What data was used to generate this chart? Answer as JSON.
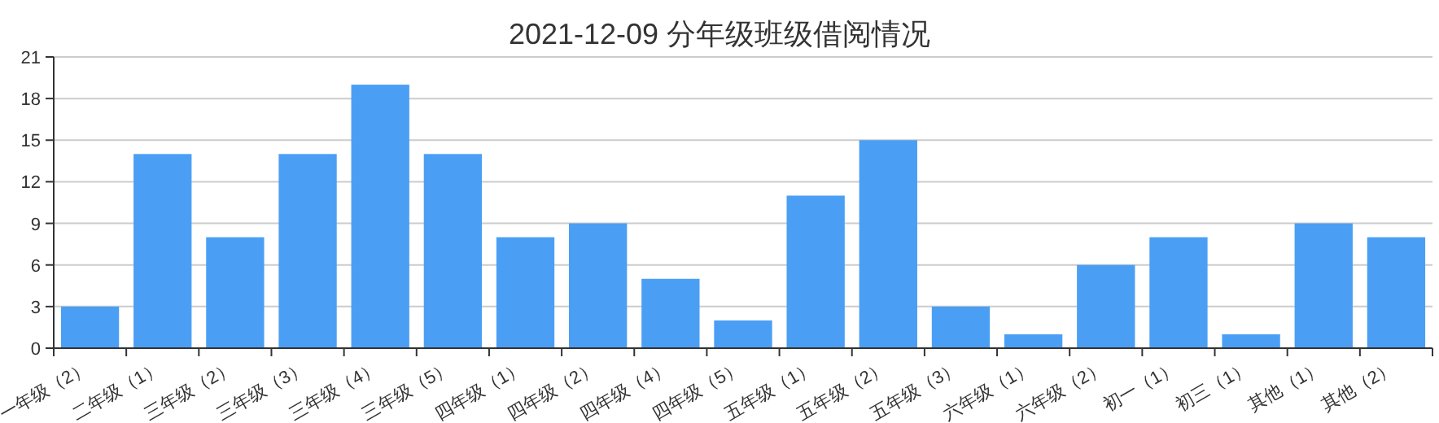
{
  "chart_data": {
    "type": "bar",
    "title": "2021-12-09 分年级班级借阅情况",
    "categories": [
      "一年级（2）",
      "二年级（1）",
      "三年级（2）",
      "三年级（3）",
      "三年级（4）",
      "三年级（5）",
      "四年级（1）",
      "四年级（2）",
      "四年级（4）",
      "四年级（5）",
      "五年级（1）",
      "五年级（2）",
      "五年级（3）",
      "六年级（1）",
      "六年级（2）",
      "初一（1）",
      "初三（1）",
      "其他（1）",
      "其他（2）"
    ],
    "values": [
      3,
      14,
      8,
      14,
      19,
      14,
      8,
      9,
      5,
      2,
      11,
      15,
      3,
      1,
      6,
      8,
      1,
      9,
      8
    ],
    "color": "#4a9ff5",
    "ylim": [
      0,
      21
    ],
    "yticks": [
      0,
      3,
      6,
      9,
      12,
      15,
      18,
      21
    ],
    "grid": "y"
  }
}
